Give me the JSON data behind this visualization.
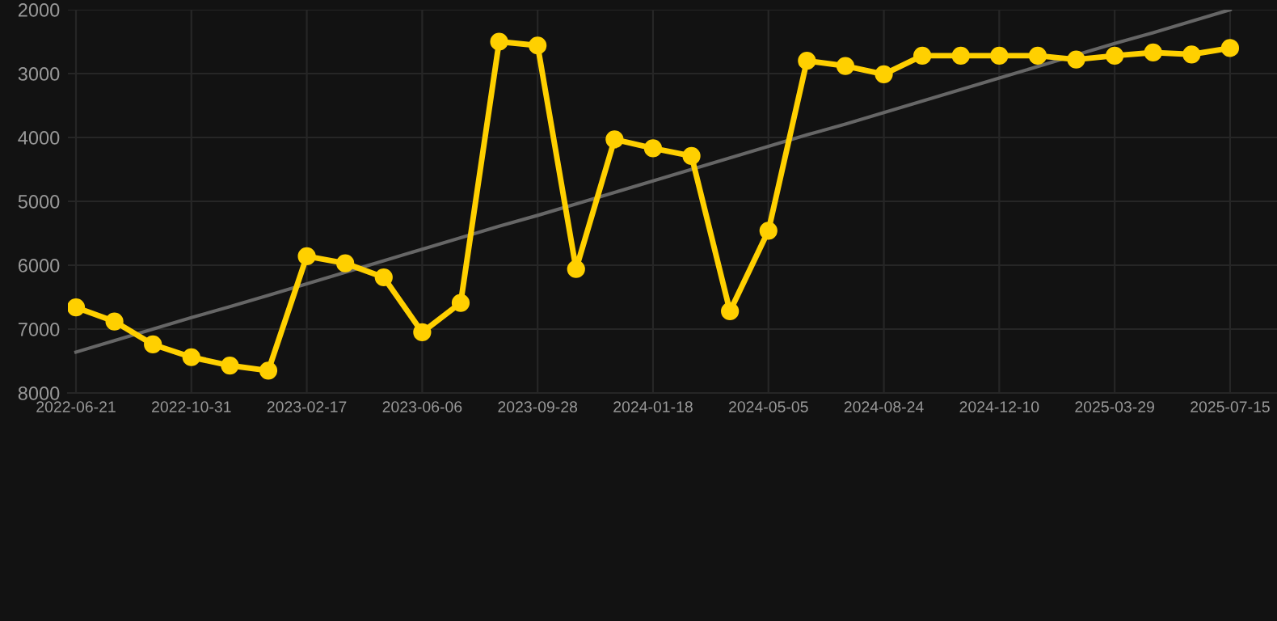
{
  "chart_data": {
    "type": "line",
    "categories": [
      "2022-06-21",
      null,
      null,
      "2022-10-31",
      null,
      null,
      "2023-02-17",
      null,
      null,
      "2023-06-06",
      null,
      null,
      "2023-09-28",
      null,
      null,
      "2024-01-18",
      null,
      null,
      "2024-05-05",
      null,
      null,
      "2024-08-24",
      null,
      null,
      "2024-12-10",
      null,
      null,
      "2025-03-29",
      null,
      null,
      "2025-07-15"
    ],
    "series": [
      {
        "color": "#ffd000",
        "marker": "circle",
        "values": [
          6660,
          6880,
          7240,
          7440,
          7570,
          7650,
          5860,
          5970,
          6190,
          7050,
          6590,
          2500,
          2560,
          6060,
          4030,
          4170,
          4290,
          6720,
          5460,
          2800,
          2880,
          3010,
          2720,
          2720,
          2720,
          2720,
          2780,
          2720,
          2670,
          2700,
          2600
        ]
      },
      {
        "type": "line",
        "color": "#666666",
        "marker": "none",
        "values": [
          7360,
          7180,
          7000,
          6820,
          6650,
          6470,
          6290,
          6110,
          5930,
          5750,
          5570,
          5390,
          5220,
          5040,
          4860,
          4680,
          4500,
          4320,
          4140,
          3960,
          3790,
          3610,
          3430,
          3250,
          3070,
          2890,
          2710,
          2530,
          2360,
          2180,
          2000
        ]
      }
    ],
    "ylim": [
      8000,
      2000
    ],
    "yticks": [
      2000,
      3000,
      4000,
      5000,
      6000,
      7000,
      8000
    ],
    "grid": true,
    "legend": false
  }
}
